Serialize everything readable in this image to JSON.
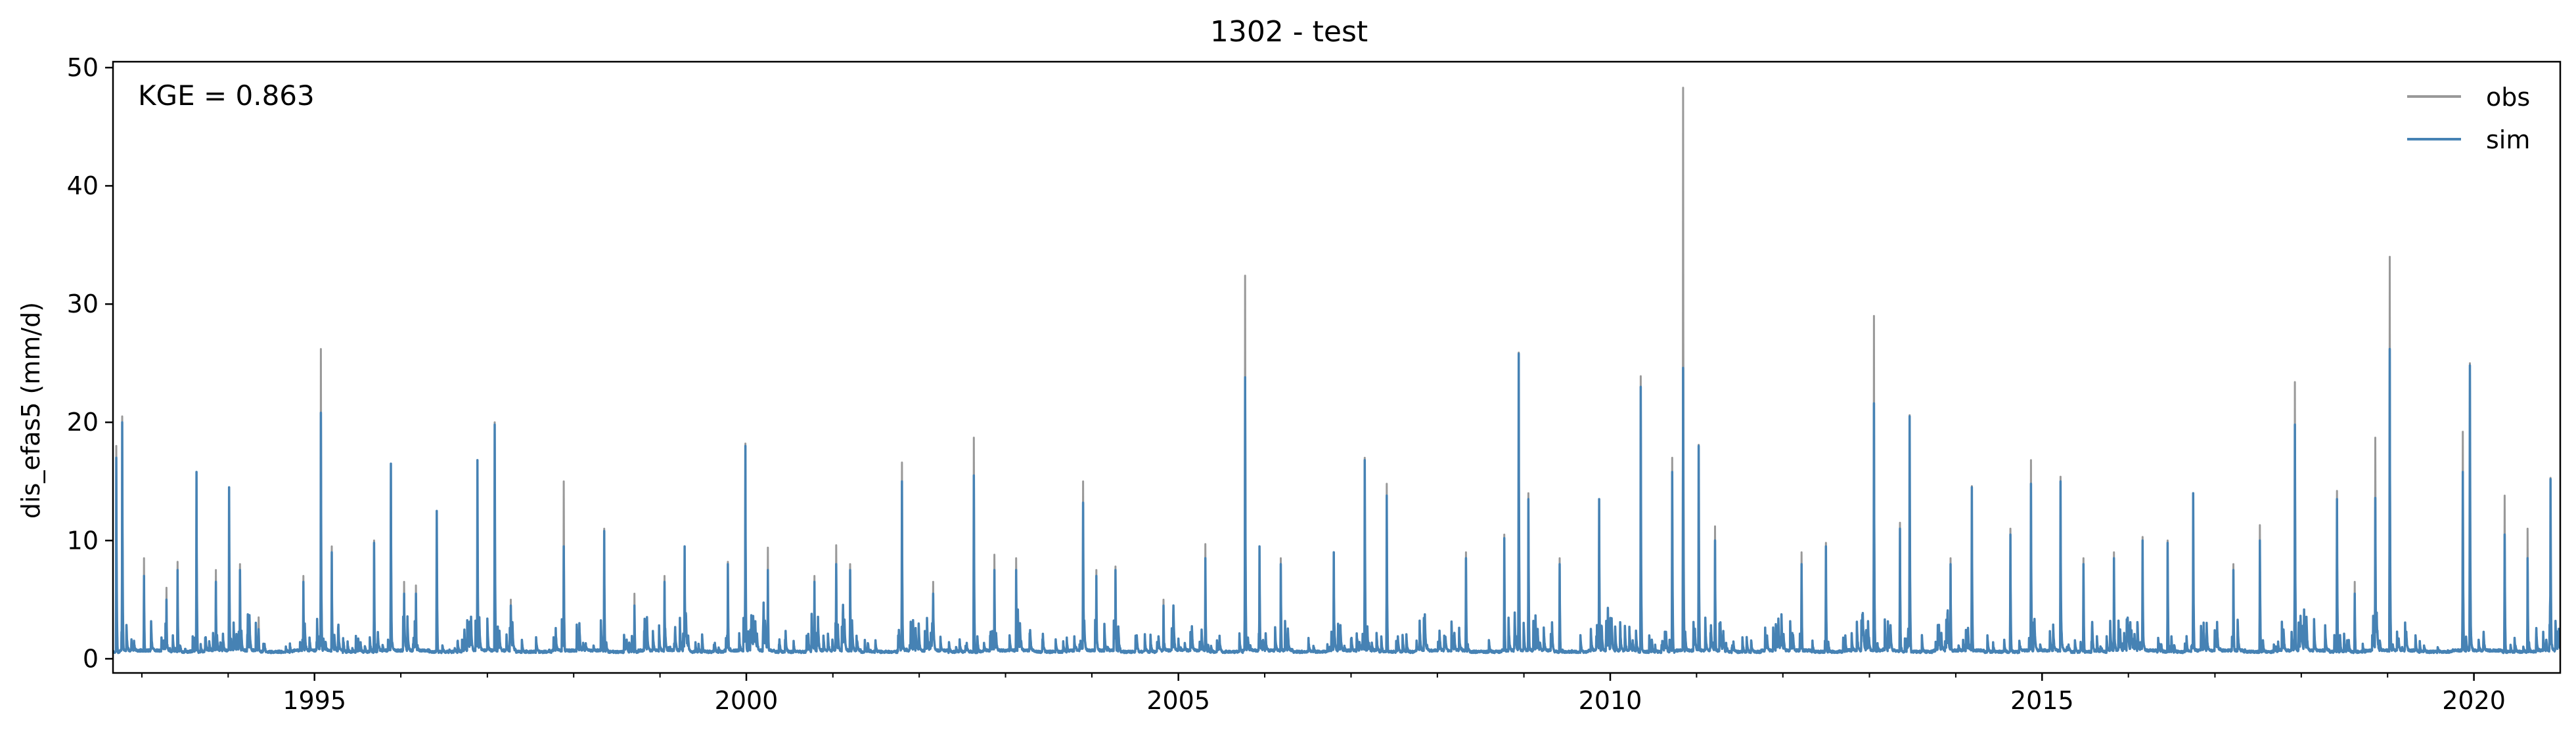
{
  "chart_data": {
    "type": "line",
    "title": "1302 - test",
    "xlabel": "",
    "ylabel": "dis_efas5 (mm/d)",
    "annotation": "KGE = 0.863",
    "x_range": [
      "1992-09-01",
      "2020-12-31"
    ],
    "ylim": [
      -1.2,
      50.5
    ],
    "y_ticks": [
      0,
      10,
      20,
      30,
      40,
      50
    ],
    "x_ticks": [
      "1995",
      "2000",
      "2005",
      "2010",
      "2015",
      "2020"
    ],
    "grid": false,
    "legend_position": "top-right",
    "series": [
      {
        "name": "obs",
        "color": "#999999",
        "peaks": [
          [
            "1992-09-15",
            18.0
          ],
          [
            "1992-10-10",
            20.5
          ],
          [
            "1993-01-10",
            8.5
          ],
          [
            "1993-04-15",
            6.0
          ],
          [
            "1993-06-01",
            8.2
          ],
          [
            "1993-08-20",
            15.8
          ],
          [
            "1993-11-10",
            7.5
          ],
          [
            "1994-01-05",
            14.5
          ],
          [
            "1994-02-20",
            8.0
          ],
          [
            "1994-05-10",
            3.5
          ],
          [
            "1994-11-15",
            7.0
          ],
          [
            "1995-01-28",
            26.2
          ],
          [
            "1995-03-15",
            9.5
          ],
          [
            "1995-09-10",
            10.0
          ],
          [
            "1995-11-20",
            16.5
          ],
          [
            "1996-01-15",
            6.5
          ],
          [
            "1996-03-05",
            6.2
          ],
          [
            "1996-06-01",
            12.5
          ],
          [
            "1996-11-20",
            16.8
          ],
          [
            "1997-02-01",
            20.0
          ],
          [
            "1997-04-10",
            5.0
          ],
          [
            "1997-11-20",
            15.0
          ],
          [
            "1998-05-10",
            11.0
          ],
          [
            "1998-09-15",
            5.5
          ],
          [
            "1999-01-20",
            7.0
          ],
          [
            "1999-04-15",
            9.5
          ],
          [
            "1999-10-15",
            8.2
          ],
          [
            "1999-12-28",
            18.2
          ],
          [
            "2000-04-01",
            9.4
          ],
          [
            "2000-10-15",
            7.0
          ],
          [
            "2001-01-15",
            9.6
          ],
          [
            "2001-03-15",
            8.0
          ],
          [
            "2001-10-20",
            16.6
          ],
          [
            "2002-03-01",
            6.5
          ],
          [
            "2002-08-20",
            18.7
          ],
          [
            "2002-11-15",
            8.8
          ],
          [
            "2003-02-15",
            8.5
          ],
          [
            "2003-11-25",
            15.0
          ],
          [
            "2004-01-20",
            7.5
          ],
          [
            "2004-04-10",
            7.8
          ],
          [
            "2004-10-30",
            5.0
          ],
          [
            "2005-04-25",
            9.7
          ],
          [
            "2005-10-10",
            32.4
          ],
          [
            "2005-12-10",
            9.5
          ],
          [
            "2006-03-10",
            8.5
          ],
          [
            "2006-10-20",
            9.0
          ],
          [
            "2007-02-28",
            17.0
          ],
          [
            "2007-06-01",
            14.8
          ],
          [
            "2008-05-01",
            9.0
          ],
          [
            "2008-10-10",
            10.5
          ],
          [
            "2008-12-10",
            25.9
          ],
          [
            "2009-01-20",
            14.0
          ],
          [
            "2009-06-01",
            8.5
          ],
          [
            "2009-11-15",
            13.5
          ],
          [
            "2010-05-10",
            23.9
          ],
          [
            "2010-09-20",
            17.0
          ],
          [
            "2010-11-05",
            48.3
          ],
          [
            "2011-01-10",
            18.1
          ],
          [
            "2011-03-20",
            11.2
          ],
          [
            "2012-03-20",
            9.0
          ],
          [
            "2012-07-01",
            9.8
          ],
          [
            "2013-01-20",
            29.0
          ],
          [
            "2013-05-10",
            11.5
          ],
          [
            "2013-06-20",
            20.6
          ],
          [
            "2013-12-10",
            8.5
          ],
          [
            "2014-03-10",
            14.6
          ],
          [
            "2014-08-20",
            11.0
          ],
          [
            "2014-11-15",
            16.8
          ],
          [
            "2015-03-20",
            15.4
          ],
          [
            "2015-06-25",
            8.5
          ],
          [
            "2015-11-01",
            9.0
          ],
          [
            "2016-03-01",
            10.3
          ],
          [
            "2016-06-15",
            10.0
          ],
          [
            "2016-10-01",
            14.0
          ],
          [
            "2017-03-20",
            8.0
          ],
          [
            "2017-07-10",
            11.3
          ],
          [
            "2017-12-05",
            23.4
          ],
          [
            "2018-06-01",
            14.2
          ],
          [
            "2018-08-15",
            6.5
          ],
          [
            "2018-11-10",
            18.7
          ],
          [
            "2019-01-10",
            34.0
          ],
          [
            "2019-11-15",
            19.2
          ],
          [
            "2019-12-15",
            25.0
          ],
          [
            "2020-05-10",
            13.8
          ],
          [
            "2020-08-15",
            11.0
          ],
          [
            "2020-11-20",
            15.3
          ]
        ]
      },
      {
        "name": "sim",
        "color": "#4682b4",
        "peaks": [
          [
            "1992-09-15",
            17.0
          ],
          [
            "1992-10-10",
            20.0
          ],
          [
            "1993-01-10",
            7.0
          ],
          [
            "1993-04-15",
            5.0
          ],
          [
            "1993-06-01",
            7.5
          ],
          [
            "1993-08-20",
            15.8
          ],
          [
            "1993-11-10",
            6.5
          ],
          [
            "1994-01-05",
            14.5
          ],
          [
            "1994-02-20",
            7.5
          ],
          [
            "1994-05-10",
            2.5
          ],
          [
            "1994-11-15",
            6.5
          ],
          [
            "1995-01-28",
            20.8
          ],
          [
            "1995-03-15",
            9.0
          ],
          [
            "1995-09-10",
            9.8
          ],
          [
            "1995-11-20",
            16.5
          ],
          [
            "1996-01-15",
            5.5
          ],
          [
            "1996-03-05",
            5.5
          ],
          [
            "1996-06-01",
            12.5
          ],
          [
            "1996-11-20",
            16.8
          ],
          [
            "1997-02-01",
            19.8
          ],
          [
            "1997-04-10",
            4.5
          ],
          [
            "1997-11-20",
            9.5
          ],
          [
            "1998-05-10",
            10.8
          ],
          [
            "1998-09-15",
            4.5
          ],
          [
            "1999-01-20",
            6.5
          ],
          [
            "1999-04-15",
            9.5
          ],
          [
            "1999-10-15",
            8.0
          ],
          [
            "1999-12-28",
            18.0
          ],
          [
            "2000-04-01",
            7.5
          ],
          [
            "2000-10-15",
            6.5
          ],
          [
            "2001-01-15",
            8.0
          ],
          [
            "2001-03-15",
            7.5
          ],
          [
            "2001-10-20",
            15.0
          ],
          [
            "2002-03-01",
            5.5
          ],
          [
            "2002-08-20",
            15.5
          ],
          [
            "2002-11-15",
            7.5
          ],
          [
            "2003-02-15",
            7.5
          ],
          [
            "2003-11-25",
            13.2
          ],
          [
            "2004-01-20",
            7.0
          ],
          [
            "2004-04-10",
            7.5
          ],
          [
            "2004-10-30",
            4.5
          ],
          [
            "2005-04-25",
            8.5
          ],
          [
            "2005-10-10",
            23.8
          ],
          [
            "2005-12-10",
            9.5
          ],
          [
            "2006-03-10",
            8.0
          ],
          [
            "2006-10-20",
            9.0
          ],
          [
            "2007-02-28",
            16.8
          ],
          [
            "2007-06-01",
            13.8
          ],
          [
            "2008-05-01",
            8.5
          ],
          [
            "2008-10-10",
            10.2
          ],
          [
            "2008-12-10",
            25.8
          ],
          [
            "2009-01-20",
            13.5
          ],
          [
            "2009-06-01",
            8.0
          ],
          [
            "2009-11-15",
            13.5
          ],
          [
            "2010-05-10",
            23.0
          ],
          [
            "2010-09-20",
            15.8
          ],
          [
            "2010-11-05",
            24.6
          ],
          [
            "2011-01-10",
            18.0
          ],
          [
            "2011-03-20",
            10.0
          ],
          [
            "2012-03-20",
            8.0
          ],
          [
            "2012-07-01",
            9.5
          ],
          [
            "2013-01-20",
            21.6
          ],
          [
            "2013-05-10",
            11.0
          ],
          [
            "2013-06-20",
            20.5
          ],
          [
            "2013-12-10",
            8.0
          ],
          [
            "2014-03-10",
            14.5
          ],
          [
            "2014-08-20",
            10.5
          ],
          [
            "2014-11-15",
            14.8
          ],
          [
            "2015-03-20",
            15.0
          ],
          [
            "2015-06-25",
            8.0
          ],
          [
            "2015-11-01",
            8.5
          ],
          [
            "2016-03-01",
            10.0
          ],
          [
            "2016-06-15",
            9.8
          ],
          [
            "2016-10-01",
            14.0
          ],
          [
            "2017-03-20",
            7.5
          ],
          [
            "2017-07-10",
            10.0
          ],
          [
            "2017-12-05",
            19.8
          ],
          [
            "2018-06-01",
            13.5
          ],
          [
            "2018-08-15",
            5.5
          ],
          [
            "2018-11-10",
            13.6
          ],
          [
            "2019-01-10",
            26.2
          ],
          [
            "2019-11-15",
            15.8
          ],
          [
            "2019-12-15",
            24.8
          ],
          [
            "2020-05-10",
            10.5
          ],
          [
            "2020-08-15",
            8.5
          ],
          [
            "2020-11-20",
            15.2
          ]
        ]
      }
    ]
  }
}
